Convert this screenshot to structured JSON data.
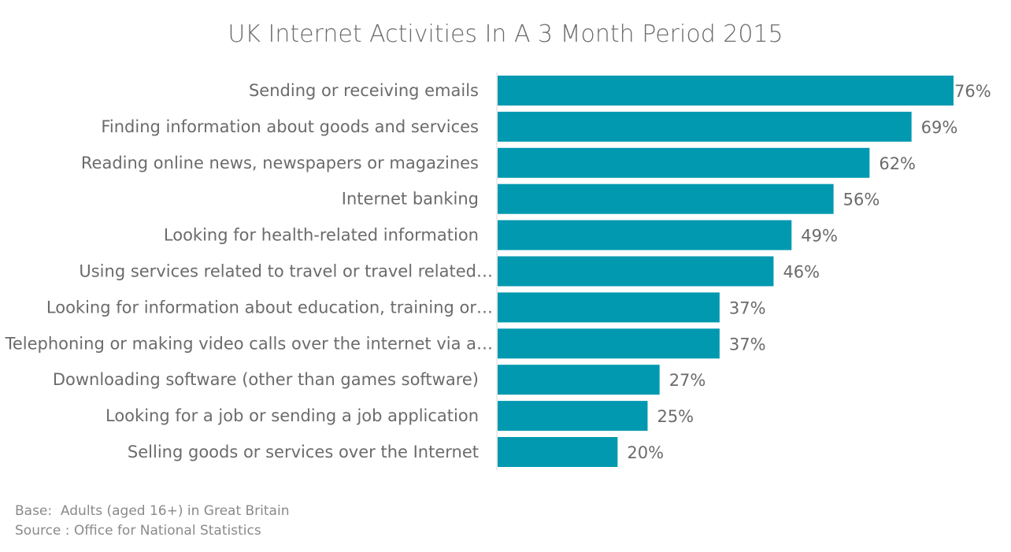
{
  "chart_data": {
    "type": "bar",
    "orientation": "horizontal",
    "title": "UK Internet Activities In A 3 Month Period 2015",
    "categories": [
      "Sending or receiving emails",
      "Finding information about goods and services",
      "Reading online news, newspapers or magazines",
      "Internet banking",
      "Looking for health-related information",
      "Using services related to travel or travel related…",
      "Looking for information about education, training or…",
      "Telephoning or making video calls over the internet via a…",
      "Downloading software (other than games software)",
      "Looking for a job or sending a job application",
      "Selling goods or services over the Internet"
    ],
    "values": [
      76,
      69,
      62,
      56,
      49,
      46,
      37,
      37,
      27,
      25,
      20
    ],
    "value_labels": [
      "76%",
      "69%",
      "62%",
      "56%",
      "49%",
      "46%",
      "37%",
      "37%",
      "27%",
      "25%",
      "20%"
    ],
    "xlim": [
      0,
      76
    ],
    "grid": false,
    "legend": "none",
    "bar_color": "#0099b0"
  },
  "footnotes": {
    "base": "Base:  Adults (aged 16+) in Great Britain",
    "source": "Source : Office for National Statistics"
  }
}
